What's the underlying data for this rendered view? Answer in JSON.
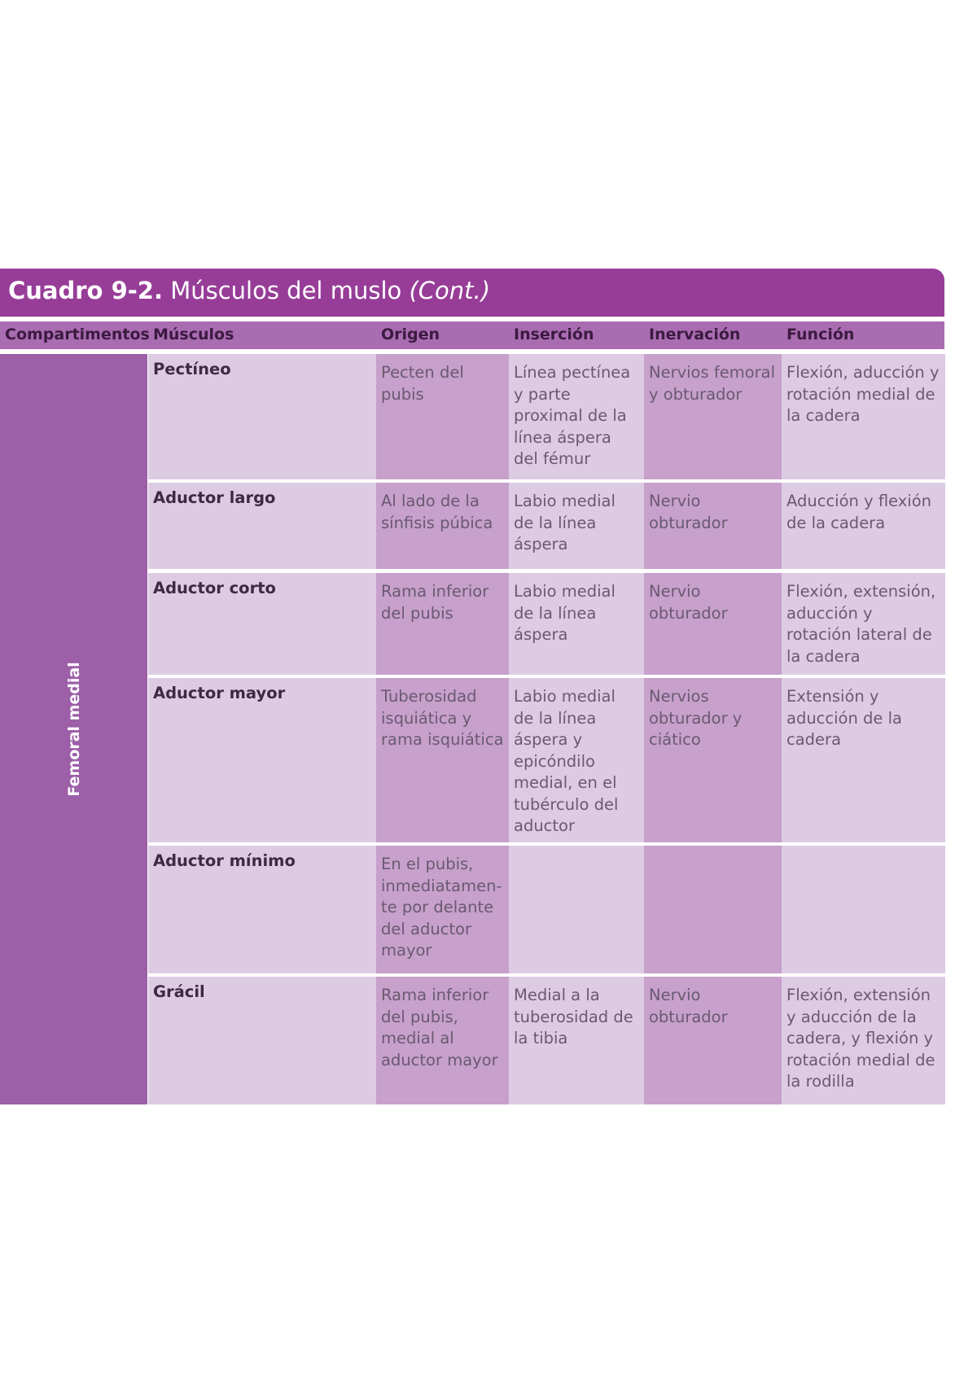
{
  "header": {
    "label": "Cuadro 9-2.",
    "title": "Músculos del muslo",
    "note": "(Cont.)"
  },
  "table": {
    "columns": [
      "Compartimentos",
      "Músculos",
      "Origen",
      "Inserción",
      "Inervación",
      "Función"
    ],
    "compartment": "Femoral medial",
    "rows": [
      {
        "musculo": "Pectíneo",
        "origen": "Pecten del pubis",
        "insercion": "Línea pectínea y parte proximal de la línea áspera del fémur",
        "inervacion": "Nervios femoral y obturador",
        "funcion": "Flexión, aducción y rotación medial de la cadera"
      },
      {
        "musculo": "Aductor largo",
        "origen": "Al lado de la sínfisis púbica",
        "insercion": "Labio medial de la línea áspera",
        "inervacion": "Nervio obturador",
        "funcion": "Aducción y flexión de la cadera"
      },
      {
        "musculo": "Aductor corto",
        "origen": "Rama inferior del pubis",
        "insercion": "Labio medial de la línea áspera",
        "inervacion": "Nervio obturador",
        "funcion": "Flexión, extensión, aducción y rotación lateral de la cadera"
      },
      {
        "musculo": "Aductor mayor",
        "origen": "Tuberosidad isquiática y rama isquiática",
        "insercion": "Labio medial de la línea áspera y epicóndilo medial, en el tubérculo del aductor",
        "inervacion": "Nervios obturador y ciático",
        "funcion": "Extensión y aducción de la cadera"
      },
      {
        "musculo": "Aductor mínimo",
        "origen": "En el pubis, inmediatamen- te por delante del aductor mayor"
      },
      {
        "musculo": "Grácil",
        "origen": "Rama inferior del pubis, medial al aductor mayor",
        "insercion": "Medial a la tuberosidad de la tibia",
        "inervacion": "Nervio obturador",
        "funcion": "Flexión, extensión y aducción de la cadera, y flexión y rotación medial de la rodilla"
      }
    ]
  }
}
